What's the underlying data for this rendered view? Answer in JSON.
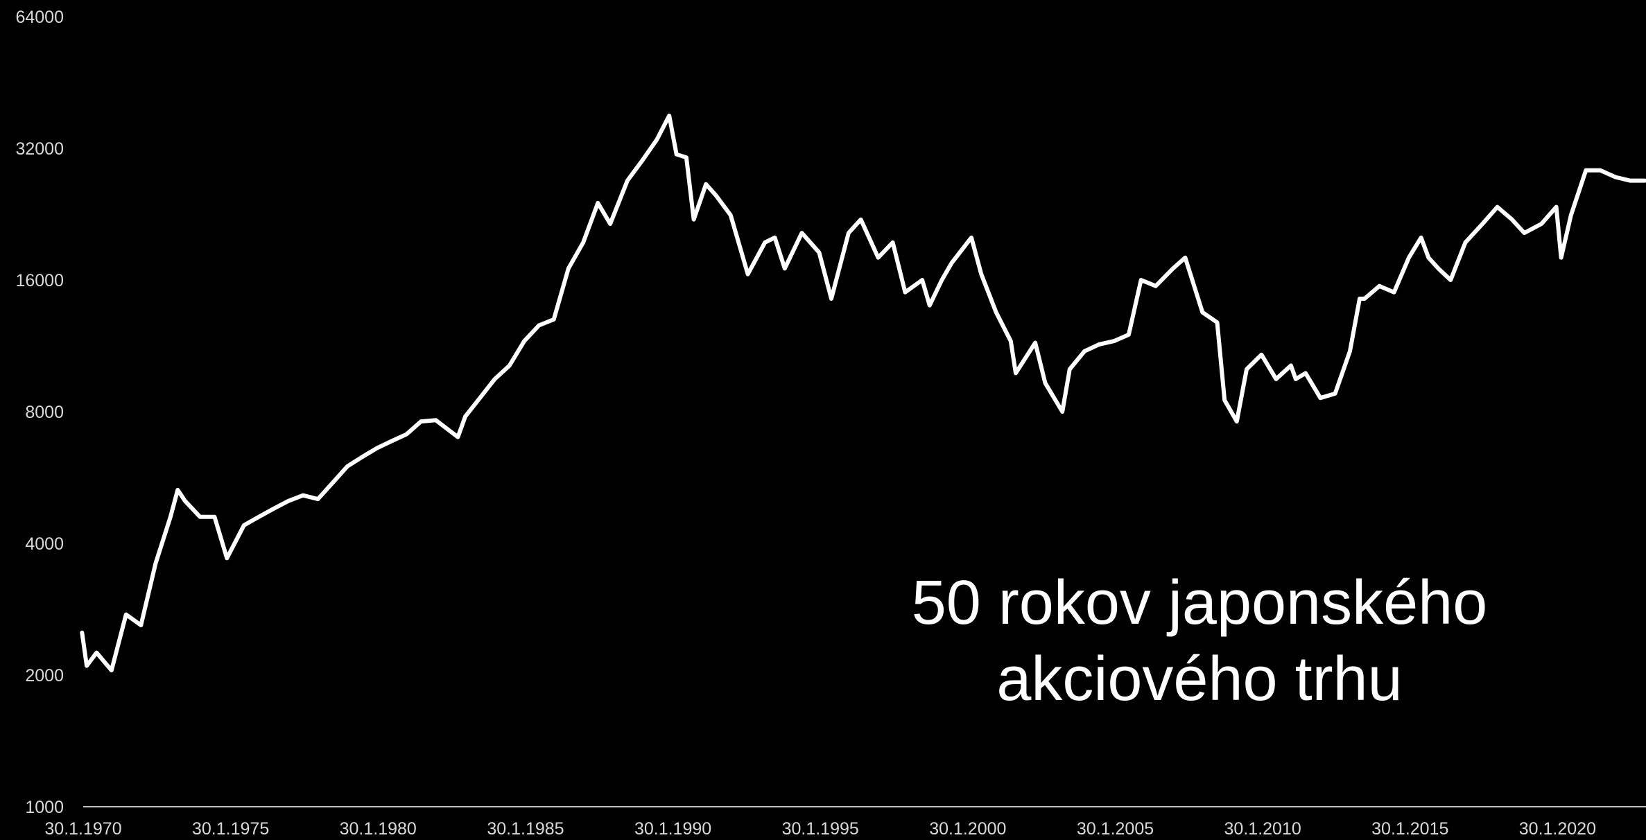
{
  "chart_data": {
    "type": "line",
    "title": [
      "50 rokov japonského",
      "akciového trhu"
    ],
    "y_scale": "log2",
    "ylim": [
      1000,
      64000
    ],
    "y_ticks": [
      "64000",
      "32000",
      "16000",
      "8000",
      "4000",
      "2000",
      "1000"
    ],
    "xlim": [
      "1970-01-30",
      "2023-01-30"
    ],
    "x_ticks": [
      "30.1.1970",
      "30.1.1975",
      "30.1.1980",
      "30.1.1985",
      "30.1.1990",
      "30.1.1995",
      "30.1.2000",
      "30.1.2005",
      "30.1.2010",
      "30.1.2015",
      "30.1.2020"
    ],
    "grid": false,
    "line_color": "#ffffff",
    "background": "#000000",
    "axis_color": "#bfbfbf",
    "series": [
      {
        "x": [
          "1970-01",
          "1970-03",
          "1970-07",
          "1971-01",
          "1971-07",
          "1972-01",
          "1972-07",
          "1973-01",
          "1973-04",
          "1973-07",
          "1974-01",
          "1974-07",
          "1974-12",
          "1975-07",
          "1976-01",
          "1976-07",
          "1977-01",
          "1977-07",
          "1978-01",
          "1978-07",
          "1979-01",
          "1979-07",
          "1980-01",
          "1980-07",
          "1981-01",
          "1981-07",
          "1982-01",
          "1982-10",
          "1983-01",
          "1983-07",
          "1984-01",
          "1984-07",
          "1985-01",
          "1985-07",
          "1986-01",
          "1986-07",
          "1987-01",
          "1987-07",
          "1987-12",
          "1988-07",
          "1989-01",
          "1989-07",
          "1989-12",
          "1990-03",
          "1990-07",
          "1990-10",
          "1991-03",
          "1991-07",
          "1992-01",
          "1992-08",
          "1993-03",
          "1993-07",
          "1993-11",
          "1994-06",
          "1995-01",
          "1995-06",
          "1996-01",
          "1996-06",
          "1997-01",
          "1997-07",
          "1997-12",
          "1998-07",
          "1998-10",
          "1999-03",
          "1999-07",
          "2000-03",
          "2000-07",
          "2001-01",
          "2001-07",
          "2001-09",
          "2002-05",
          "2002-09",
          "2003-04",
          "2003-07",
          "2004-01",
          "2004-07",
          "2005-01",
          "2005-07",
          "2005-12",
          "2006-06",
          "2007-01",
          "2007-06",
          "2008-01",
          "2008-07",
          "2008-10",
          "2009-03",
          "2009-07",
          "2010-01",
          "2010-07",
          "2011-01",
          "2011-03",
          "2011-07",
          "2012-01",
          "2012-07",
          "2013-01",
          "2013-05",
          "2013-07",
          "2014-01",
          "2014-07",
          "2015-01",
          "2015-06",
          "2015-09",
          "2016-01",
          "2016-06",
          "2016-12",
          "2017-07",
          "2018-01",
          "2018-07",
          "2018-12",
          "2019-07",
          "2020-01",
          "2020-03",
          "2020-07",
          "2021-01",
          "2021-07",
          "2022-01",
          "2022-07",
          "2023-01"
        ],
        "y": [
          2500,
          2100,
          2250,
          2050,
          2750,
          2600,
          3600,
          4600,
          5300,
          5000,
          4600,
          4600,
          3700,
          4400,
          4600,
          4800,
          5000,
          5150,
          5050,
          5500,
          6000,
          6300,
          6600,
          6850,
          7100,
          7600,
          7650,
          7000,
          7800,
          8600,
          9500,
          10200,
          11600,
          12600,
          13000,
          17000,
          19500,
          24000,
          21500,
          27000,
          30000,
          33500,
          38000,
          31000,
          30500,
          22000,
          26500,
          25000,
          22500,
          16500,
          19500,
          20000,
          17000,
          20500,
          18500,
          14500,
          20500,
          22000,
          18000,
          19500,
          15000,
          16000,
          14000,
          16000,
          17500,
          20000,
          16500,
          13500,
          11600,
          9800,
          11500,
          9300,
          8000,
          10000,
          11000,
          11400,
          11600,
          12000,
          16000,
          15500,
          17000,
          18000,
          13500,
          12800,
          8500,
          7600,
          10000,
          10800,
          9500,
          10200,
          9500,
          9800,
          8600,
          8800,
          11000,
          14500,
          14500,
          15500,
          15000,
          18000,
          20000,
          18000,
          17000,
          16000,
          19500,
          21500,
          23500,
          22000,
          20500,
          21500,
          23500,
          18000,
          22500,
          28500,
          28500,
          27500,
          27000,
          27000
        ]
      }
    ]
  }
}
